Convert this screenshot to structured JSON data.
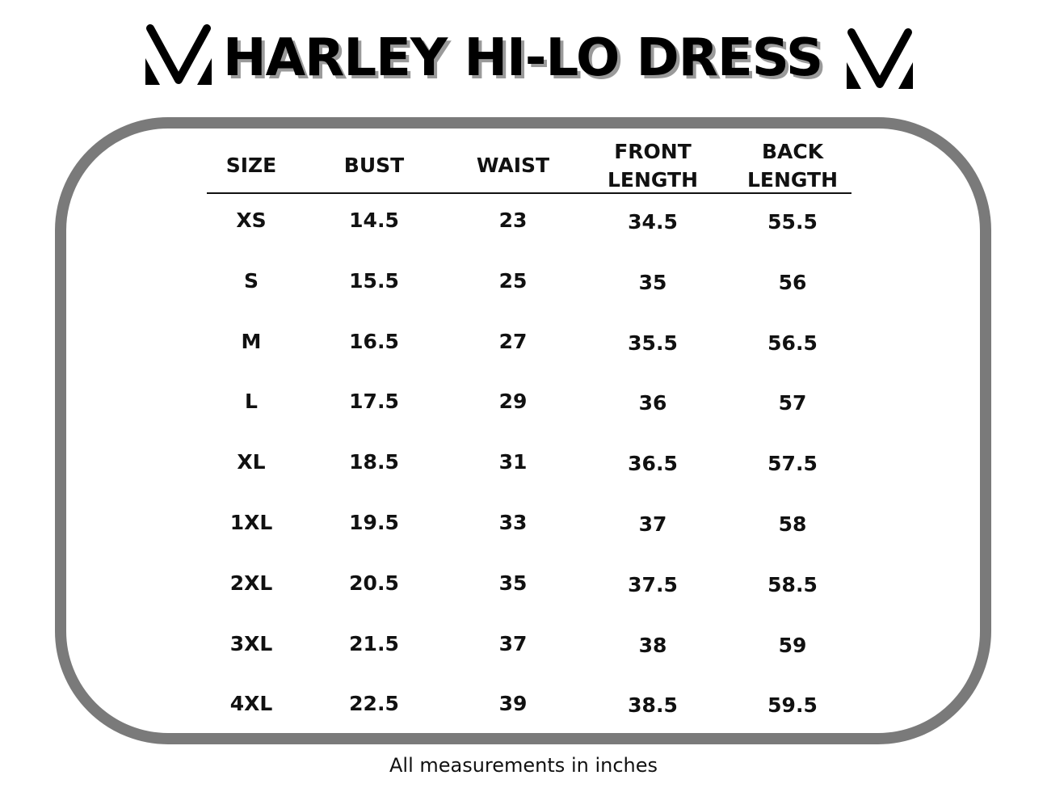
{
  "title": "HARLEY HI-LO DRESS",
  "brand_logo": "M-chevron-logo",
  "table": {
    "headers": [
      {
        "line1": "SIZE",
        "line2": ""
      },
      {
        "line1": "BUST",
        "line2": ""
      },
      {
        "line1": "WAIST",
        "line2": ""
      },
      {
        "line1": "FRONT",
        "line2": "LENGTH"
      },
      {
        "line1": "BACK",
        "line2": "LENGTH"
      }
    ],
    "rows": [
      [
        "XS",
        "14.5",
        "23",
        "34.5",
        "55.5"
      ],
      [
        "S",
        "15.5",
        "25",
        "35",
        "56"
      ],
      [
        "M",
        "16.5",
        "27",
        "35.5",
        "56.5"
      ],
      [
        "L",
        "17.5",
        "29",
        "36",
        "57"
      ],
      [
        "XL",
        "18.5",
        "31",
        "36.5",
        "57.5"
      ],
      [
        "1XL",
        "19.5",
        "33",
        "37",
        "58"
      ],
      [
        "2XL",
        "20.5",
        "35",
        "37.5",
        "58.5"
      ],
      [
        "3XL",
        "21.5",
        "37",
        "38",
        "59"
      ],
      [
        "4XL",
        "22.5",
        "39",
        "38.5",
        "59.5"
      ]
    ]
  },
  "footnote": "All measurements in inches",
  "colors": {
    "frame": "#7a7a7a",
    "text": "#111111",
    "title_shadow": "#9a9a9a"
  }
}
